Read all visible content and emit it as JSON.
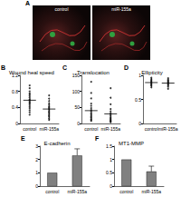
{
  "panel_a": {
    "label": "A",
    "captions": [
      "control",
      "miR-155a"
    ]
  },
  "chart_data": [
    {
      "label": "B",
      "type": "scatter",
      "title": "Wound heal speed",
      "categories": [
        "control",
        "miR-155a"
      ],
      "values": [
        [
          0.95,
          0.88,
          0.8,
          0.75,
          0.72,
          0.68,
          0.64,
          0.6,
          0.58,
          0.55,
          0.52,
          0.5,
          0.46,
          0.42,
          0.38,
          0.33,
          0.28,
          0.22
        ],
        [
          0.7,
          0.62,
          0.56,
          0.5,
          0.46,
          0.42,
          0.4,
          0.37,
          0.34,
          0.31,
          0.28,
          0.25,
          0.22,
          0.19,
          0.16,
          0.12,
          0.09
        ]
      ],
      "means": [
        0.58,
        0.36
      ],
      "color": "#000000",
      "ylim": [
        0,
        1.2
      ],
      "yticks": [
        0,
        0.4,
        0.8,
        1.2
      ],
      "grid": false
    },
    {
      "label": "C",
      "type": "scatter",
      "title": "Translocation",
      "categories": [
        "control",
        "miR-155a"
      ],
      "values": [
        [
          130,
          95,
          78,
          62,
          55,
          48,
          42,
          38,
          33,
          29,
          25,
          21,
          18,
          14,
          11,
          8
        ],
        [
          110,
          80,
          60,
          45,
          38,
          32,
          27,
          23,
          19,
          16,
          13,
          10,
          8,
          6,
          4
        ]
      ],
      "means": [
        40,
        30
      ],
      "color": "#000000",
      "ylim": [
        0,
        150
      ],
      "yticks": [
        0,
        50,
        100,
        150
      ],
      "grid": false
    },
    {
      "label": "D",
      "type": "scatter",
      "title": "Ellipticity",
      "categories": [
        "control",
        "miR-155a"
      ],
      "values": [
        [
          0.95,
          0.92,
          0.9,
          0.88,
          0.86,
          0.84,
          0.82,
          0.8,
          0.78,
          0.75
        ],
        [
          0.94,
          0.91,
          0.89,
          0.87,
          0.85,
          0.83,
          0.81,
          0.79,
          0.76,
          0.72
        ]
      ],
      "means": [
        0.85,
        0.84
      ],
      "color": "#000000",
      "ylim": [
        0,
        1
      ],
      "yticks": [
        0,
        0.5,
        1
      ],
      "grid": false
    },
    {
      "label": "E",
      "type": "bar",
      "title": "E-cadherin",
      "categories": [
        "control",
        "miR-155a"
      ],
      "values": [
        1.0,
        2.3
      ],
      "errors": [
        0,
        0.5
      ],
      "color": "#808080",
      "ylim": [
        0,
        3
      ],
      "yticks": [
        0,
        1,
        2,
        3
      ],
      "grid": false
    },
    {
      "label": "F",
      "type": "bar",
      "title": "MT1-MMP",
      "categories": [
        "control",
        "miR-155a"
      ],
      "values": [
        1.0,
        0.55
      ],
      "errors": [
        0,
        0.2
      ],
      "color": "#808080",
      "ylim": [
        0,
        1.5
      ],
      "yticks": [
        0,
        0.5,
        1,
        1.5
      ],
      "grid": false
    }
  ]
}
